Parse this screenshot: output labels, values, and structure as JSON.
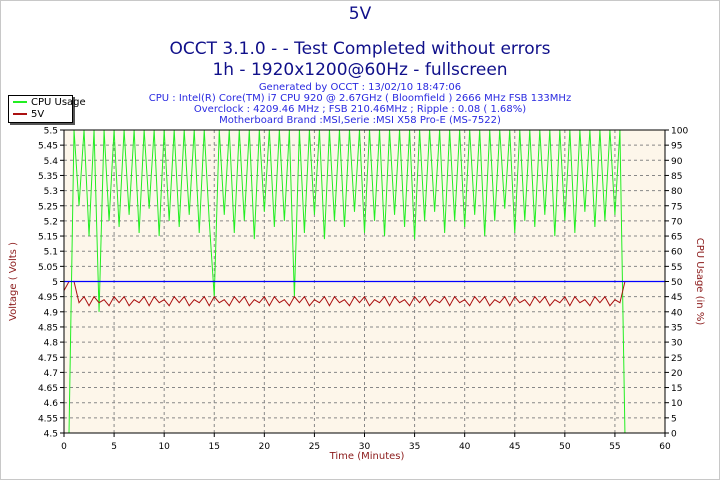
{
  "title": "5V",
  "subtitle_1": "OCCT 3.1.0 -  - Test Completed without errors",
  "subtitle_2": "1h - 1920x1200@60Hz - fullscreen",
  "info": [
    "Generated by OCCT : 13/02/10 18:47:06",
    "CPU : Intel(R) Core(TM) i7 CPU 920 @ 2.67GHz ( Bloomfield ) 2666 MHz FSB 133MHz",
    "Overclock : 4209.46 MHz ; FSB 210.46MHz ; Ripple : 0.08 ( 1.68%)",
    "Motherboard Brand :MSI,Serie :MSI X58 Pro-E (MS-7522)"
  ],
  "chart_data": {
    "type": "line",
    "xlabel": "Time (Minutes)",
    "ylabel": "Voltage ( Volts )",
    "y2label": "CPU Usage (in %)",
    "xlim": [
      0,
      60
    ],
    "ylim": [
      4.5,
      5.5
    ],
    "y2lim": [
      0,
      100
    ],
    "xticks": [
      "0",
      "5",
      "10",
      "15",
      "20",
      "25",
      "30",
      "35",
      "40",
      "45",
      "50",
      "55",
      "60"
    ],
    "yticks": [
      "4.5",
      "4.55",
      "4.6",
      "4.65",
      "4.7",
      "4.75",
      "4.8",
      "4.85",
      "4.9",
      "4.95",
      "5",
      "5.05",
      "5.1",
      "5.15",
      "5.2",
      "5.25",
      "5.3",
      "5.35",
      "5.4",
      "5.45",
      "5.5"
    ],
    "y2ticks": [
      "0",
      "5",
      "10",
      "15",
      "20",
      "25",
      "30",
      "35",
      "40",
      "45",
      "50",
      "55",
      "60",
      "65",
      "70",
      "75",
      "80",
      "85",
      "90",
      "95",
      "100"
    ],
    "grid": true,
    "legend_position": "top-left",
    "reference_line": {
      "value": 5,
      "color": "#0000ff"
    },
    "x_step_minutes": 0.5,
    "series": [
      {
        "name": "CPU Usage",
        "axis": "right",
        "color": "#22ee22",
        "values": [
          0,
          0,
          100,
          75,
          100,
          65,
          100,
          40,
          100,
          70,
          100,
          68,
          100,
          72,
          100,
          66,
          100,
          74,
          100,
          65,
          100,
          70,
          100,
          68,
          100,
          72,
          100,
          66,
          100,
          70,
          45,
          100,
          72,
          100,
          66,
          100,
          70,
          100,
          64,
          100,
          73,
          100,
          68,
          100,
          70,
          100,
          45,
          100,
          66,
          100,
          72,
          100,
          64,
          100,
          70,
          100,
          68,
          100,
          73,
          100,
          66,
          100,
          70,
          100,
          65,
          100,
          72,
          100,
          68,
          100,
          64,
          100,
          70,
          100,
          73,
          100,
          66,
          100,
          70,
          100,
          68,
          100,
          72,
          100,
          65,
          100,
          70,
          100,
          74,
          100,
          66,
          100,
          70,
          100,
          68,
          100,
          72,
          100,
          65,
          100,
          70,
          100,
          66,
          100,
          73,
          100,
          68,
          100,
          70,
          100,
          72,
          100,
          0,
          0,
          0,
          0,
          0,
          0,
          0,
          0,
          0
        ]
      },
      {
        "name": "5V",
        "axis": "left",
        "color": "#aa1111",
        "values": [
          4.97,
          5.0,
          5.0,
          4.93,
          4.95,
          4.92,
          4.95,
          4.93,
          4.94,
          4.92,
          4.95,
          4.93,
          4.95,
          4.92,
          4.94,
          4.93,
          4.95,
          4.92,
          4.95,
          4.93,
          4.94,
          4.92,
          4.95,
          4.93,
          4.95,
          4.92,
          4.94,
          4.93,
          4.95,
          4.92,
          4.95,
          4.93,
          4.94,
          4.92,
          4.95,
          4.93,
          4.95,
          4.92,
          4.94,
          4.93,
          4.95,
          4.92,
          4.95,
          4.93,
          4.94,
          4.92,
          4.95,
          4.93,
          4.95,
          4.92,
          4.94,
          4.93,
          4.95,
          4.92,
          4.95,
          4.93,
          4.94,
          4.92,
          4.95,
          4.93,
          4.95,
          4.92,
          4.94,
          4.93,
          4.95,
          4.92,
          4.95,
          4.93,
          4.94,
          4.92,
          4.95,
          4.93,
          4.95,
          4.92,
          4.94,
          4.93,
          4.95,
          4.92,
          4.95,
          4.93,
          4.94,
          4.92,
          4.95,
          4.93,
          4.95,
          4.92,
          4.94,
          4.93,
          4.95,
          4.92,
          4.95,
          4.93,
          4.94,
          4.92,
          4.95,
          4.93,
          4.95,
          4.92,
          4.94,
          4.93,
          4.95,
          4.92,
          4.95,
          4.93,
          4.94,
          4.92,
          4.95,
          4.93,
          4.95,
          4.92,
          4.94,
          4.93,
          5.0,
          5.0,
          5.0,
          5.0,
          5.0,
          5.0,
          5.0,
          5.0,
          5.0
        ]
      }
    ]
  }
}
